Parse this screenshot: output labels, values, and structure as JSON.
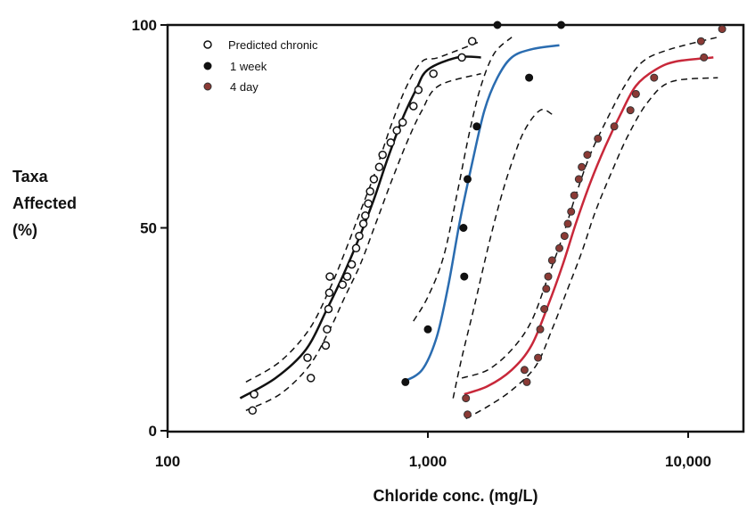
{
  "chart_data": {
    "type": "scatter",
    "title": "",
    "xlabel": "Chloride conc. (mg/L)",
    "ylabel_lines": [
      "Taxa",
      "Affected",
      "(%)"
    ],
    "x_scale": "log",
    "xlim": [
      100,
      15000
    ],
    "ylim": [
      0,
      100
    ],
    "x_ticks": [
      {
        "value": 100,
        "label": "100"
      },
      {
        "value": 1000,
        "label": "1,000"
      },
      {
        "value": 10000,
        "label": "10,000"
      }
    ],
    "y_ticks": [
      {
        "value": 0,
        "label": "0"
      },
      {
        "value": 50,
        "label": "50"
      },
      {
        "value": 100,
        "label": "100"
      }
    ],
    "grid": false,
    "legend_position": "top-left",
    "series": [
      {
        "name": "Predicted chronic",
        "marker": "open-circle",
        "color": "#111111",
        "points": [
          [
            212,
            5
          ],
          [
            215,
            9
          ],
          [
            345,
            18
          ],
          [
            355,
            13
          ],
          [
            405,
            21
          ],
          [
            410,
            25
          ],
          [
            415,
            30
          ],
          [
            418,
            34
          ],
          [
            420,
            38
          ],
          [
            470,
            36
          ],
          [
            490,
            38
          ],
          [
            510,
            41
          ],
          [
            530,
            45
          ],
          [
            545,
            48
          ],
          [
            565,
            51
          ],
          [
            575,
            53
          ],
          [
            590,
            56
          ],
          [
            600,
            59
          ],
          [
            620,
            62
          ],
          [
            650,
            65
          ],
          [
            670,
            68
          ],
          [
            720,
            71
          ],
          [
            760,
            74
          ],
          [
            800,
            76
          ],
          [
            880,
            80
          ],
          [
            920,
            84
          ],
          [
            1050,
            88
          ],
          [
            1350,
            92
          ],
          [
            1480,
            96
          ]
        ],
        "fit": [
          [
            190,
            8
          ],
          [
            260,
            13
          ],
          [
            340,
            20
          ],
          [
            410,
            30
          ],
          [
            470,
            38
          ],
          [
            540,
            47
          ],
          [
            620,
            57
          ],
          [
            700,
            67
          ],
          [
            800,
            77
          ],
          [
            900,
            84
          ],
          [
            1000,
            89
          ],
          [
            1300,
            92
          ],
          [
            1600,
            92
          ]
        ],
        "ci_upper": [
          [
            200,
            12
          ],
          [
            270,
            17
          ],
          [
            350,
            25
          ],
          [
            420,
            35
          ],
          [
            480,
            44
          ],
          [
            550,
            54
          ],
          [
            630,
            64
          ],
          [
            720,
            75
          ],
          [
            830,
            85
          ],
          [
            950,
            91
          ],
          [
            1100,
            92
          ],
          [
            1600,
            96
          ]
        ],
        "ci_lower": [
          [
            200,
            5
          ],
          [
            270,
            9
          ],
          [
            350,
            16
          ],
          [
            420,
            25
          ],
          [
            480,
            33
          ],
          [
            550,
            41
          ],
          [
            630,
            51
          ],
          [
            720,
            61
          ],
          [
            830,
            71
          ],
          [
            950,
            79
          ],
          [
            1100,
            85
          ],
          [
            1600,
            88
          ]
        ],
        "fit_color": "#111111"
      },
      {
        "name": "1 week",
        "marker": "filled-circle",
        "color": "#111111",
        "points": [
          [
            820,
            12
          ],
          [
            1000,
            25
          ],
          [
            1380,
            38
          ],
          [
            1370,
            50
          ],
          [
            1420,
            62
          ],
          [
            1540,
            75
          ],
          [
            2450,
            87
          ],
          [
            1850,
            100
          ],
          [
            3250,
            100
          ]
        ],
        "fit": [
          [
            800,
            12
          ],
          [
            950,
            15
          ],
          [
            1080,
            23
          ],
          [
            1200,
            36
          ],
          [
            1330,
            52
          ],
          [
            1480,
            66
          ],
          [
            1650,
            79
          ],
          [
            1850,
            87
          ],
          [
            2100,
            92
          ],
          [
            2500,
            94
          ],
          [
            3200,
            95
          ]
        ],
        "ci_upper": [
          [
            880,
            27
          ],
          [
            1000,
            33
          ],
          [
            1150,
            43
          ],
          [
            1300,
            59
          ],
          [
            1450,
            74
          ],
          [
            1600,
            85
          ],
          [
            1800,
            93
          ],
          [
            2100,
            97
          ]
        ],
        "ci_lower": [
          [
            1250,
            8
          ],
          [
            1350,
            18
          ],
          [
            1500,
            30
          ],
          [
            1700,
            45
          ],
          [
            1900,
            57
          ],
          [
            2100,
            66
          ],
          [
            2350,
            74
          ],
          [
            2700,
            79
          ],
          [
            3000,
            78
          ]
        ],
        "fit_color": "#2a6cb0"
      },
      {
        "name": "4 day",
        "marker": "filled-circle",
        "color": "#8b3a35",
        "points": [
          [
            1420,
            4
          ],
          [
            1400,
            8
          ],
          [
            2350,
            15
          ],
          [
            2400,
            12
          ],
          [
            2650,
            18
          ],
          [
            2700,
            25
          ],
          [
            2800,
            30
          ],
          [
            2850,
            35
          ],
          [
            2900,
            38
          ],
          [
            3000,
            42
          ],
          [
            3200,
            45
          ],
          [
            3350,
            48
          ],
          [
            3450,
            51
          ],
          [
            3550,
            54
          ],
          [
            3650,
            58
          ],
          [
            3800,
            62
          ],
          [
            3900,
            65
          ],
          [
            4100,
            68
          ],
          [
            4500,
            72
          ],
          [
            5200,
            75
          ],
          [
            6000,
            79
          ],
          [
            6300,
            83
          ],
          [
            7400,
            87
          ],
          [
            11500,
            92
          ],
          [
            11200,
            96
          ],
          [
            13500,
            99
          ]
        ],
        "fit": [
          [
            1380,
            9
          ],
          [
            1700,
            11
          ],
          [
            2100,
            15
          ],
          [
            2500,
            21
          ],
          [
            2900,
            31
          ],
          [
            3300,
            41
          ],
          [
            3700,
            51
          ],
          [
            4200,
            61
          ],
          [
            4800,
            70
          ],
          [
            5500,
            78
          ],
          [
            6300,
            85
          ],
          [
            7500,
            89
          ],
          [
            9000,
            91
          ],
          [
            12500,
            92
          ]
        ],
        "ci_upper": [
          [
            1350,
            13
          ],
          [
            1700,
            15
          ],
          [
            2100,
            20
          ],
          [
            2500,
            27
          ],
          [
            2900,
            38
          ],
          [
            3300,
            48
          ],
          [
            3700,
            58
          ],
          [
            4200,
            68
          ],
          [
            4900,
            77
          ],
          [
            5700,
            85
          ],
          [
            6700,
            91
          ],
          [
            8500,
            94
          ],
          [
            13000,
            97
          ]
        ],
        "ci_lower": [
          [
            1400,
            3
          ],
          [
            1700,
            6
          ],
          [
            2100,
            10
          ],
          [
            2600,
            16
          ],
          [
            3000,
            25
          ],
          [
            3400,
            34
          ],
          [
            3900,
            44
          ],
          [
            4400,
            54
          ],
          [
            5100,
            64
          ],
          [
            5900,
            73
          ],
          [
            7000,
            81
          ],
          [
            8600,
            86
          ],
          [
            13000,
            87
          ]
        ],
        "fit_color": "#c8283a"
      }
    ]
  }
}
